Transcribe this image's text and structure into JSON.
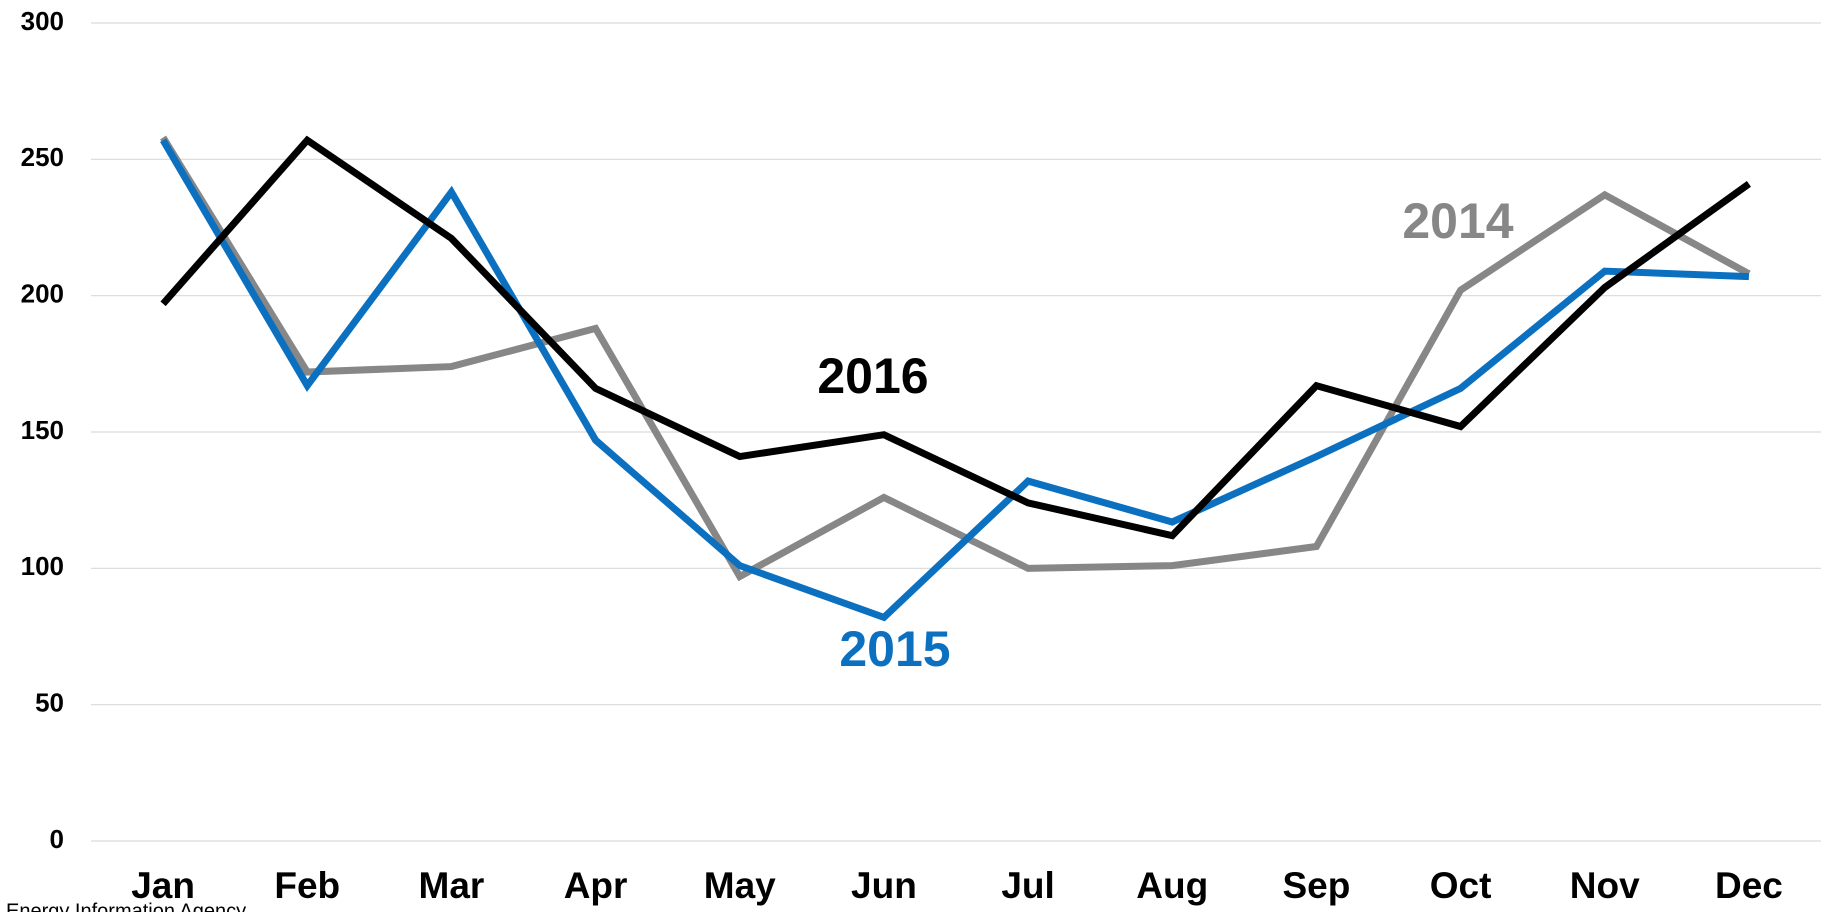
{
  "chart_data": {
    "type": "line",
    "categories": [
      "Jan",
      "Feb",
      "Mar",
      "Apr",
      "May",
      "Jun",
      "Jul",
      "Aug",
      "Sep",
      "Oct",
      "Nov",
      "Dec"
    ],
    "series": [
      {
        "name": "2014",
        "color": "#878787",
        "values": [
          258,
          172,
          174,
          188,
          97,
          126,
          100,
          101,
          108,
          202,
          237,
          208
        ]
      },
      {
        "name": "2015",
        "color": "#0b70c0",
        "values": [
          257,
          167,
          238,
          147,
          101,
          82,
          132,
          117,
          141,
          166,
          209,
          207
        ]
      },
      {
        "name": "2016",
        "color": "#000000",
        "values": [
          197,
          257,
          221,
          166,
          141,
          149,
          124,
          112,
          167,
          152,
          203,
          241
        ]
      }
    ],
    "ylim": [
      0,
      300
    ],
    "yticks": [
      0,
      50,
      100,
      150,
      200,
      250,
      300
    ],
    "grid": true,
    "source": "Energy Information Agency"
  }
}
